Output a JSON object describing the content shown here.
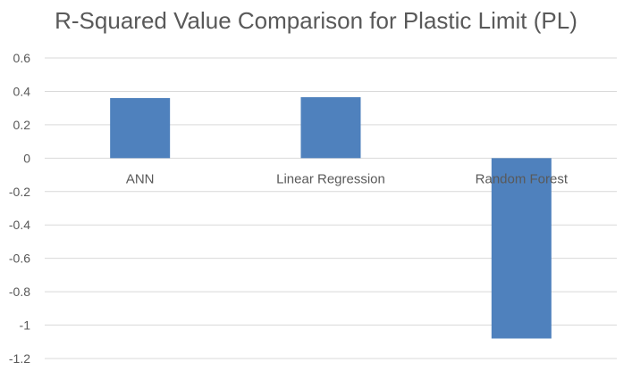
{
  "chart_data": {
    "type": "bar",
    "title": "R-Squared Value Comparison for Plastic Limit (PL)",
    "xlabel": "",
    "ylabel": "",
    "categories": [
      "ANN",
      "Linear Regression",
      "Random Forest"
    ],
    "values": [
      0.36,
      0.365,
      -1.08
    ],
    "ylim": [
      -1.2,
      0.6
    ],
    "yticks": [
      0.6,
      0.4,
      0.2,
      0,
      -0.2,
      -0.4,
      -0.6,
      -0.8,
      -1,
      -1.2
    ],
    "ytick_labels": [
      "0.6",
      "0.4",
      "0.2",
      "0",
      "-0.2",
      "-0.4",
      "-0.6",
      "-0.8",
      "-1",
      "-1.2"
    ],
    "grid": true,
    "legend": "none",
    "bar_color": "#4f81bd",
    "grid_color": "#d9d9d9",
    "text_color": "#595959"
  }
}
